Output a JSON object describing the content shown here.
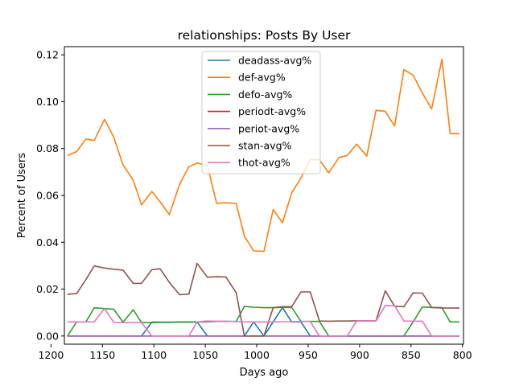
{
  "chart_data": {
    "type": "line",
    "title": "relationships: Posts By User",
    "xlabel": "Days ago",
    "ylabel": "Percent of Users",
    "xlim": [
      1187,
      799
    ],
    "x_inverted": true,
    "ylim": [
      -0.0035,
      0.1235
    ],
    "xticks": [
      1200,
      1150,
      1100,
      1050,
      1000,
      950,
      900,
      850,
      800
    ],
    "yticks": [
      0.0,
      0.02,
      0.04,
      0.06,
      0.08,
      0.1,
      0.12
    ],
    "ytick_labels": [
      "0.00",
      "0.02",
      "0.04",
      "0.06",
      "0.08",
      "0.10",
      "0.12"
    ],
    "grid": false,
    "legend_position": "top-center",
    "x": [
      1184,
      1175,
      1166,
      1158,
      1148,
      1139,
      1130,
      1120,
      1112,
      1102,
      1094,
      1085,
      1075,
      1066,
      1058,
      1048,
      1039,
      1030,
      1020,
      1012,
      1003,
      993,
      984,
      975,
      966,
      957,
      948,
      939,
      930,
      920,
      912,
      903,
      893,
      884,
      875,
      866,
      857,
      848,
      839,
      830,
      820,
      812,
      803,
      793,
      784
    ],
    "series": [
      {
        "name": "deadass-avg%",
        "color": "#1f77b4",
        "values": [
          0.0,
          0.0,
          0.0,
          0.0,
          0.0,
          0.0,
          0.0,
          0.0,
          0.0,
          0.0059,
          0.0059,
          0.0059,
          0.0059,
          0.0059,
          0.006,
          0.0,
          0.0,
          0.0,
          0.0,
          0.0,
          0.006,
          0.0,
          0.006,
          0.0121,
          0.006,
          0.006,
          0.0,
          0.0,
          0.0,
          0.0,
          0.0,
          0.0,
          0.0,
          0.0,
          0.0,
          0.0,
          0.0,
          0.0,
          0.0,
          0.0,
          0.0,
          0.0,
          0.0,
          0.0,
          0.0
        ]
      },
      {
        "name": "def-avg%",
        "color": "#ff7f0e",
        "values": [
          0.077,
          0.0787,
          0.0841,
          0.0834,
          0.0925,
          0.0848,
          0.073,
          0.0665,
          0.056,
          0.0617,
          0.0573,
          0.0518,
          0.0647,
          0.0723,
          0.0738,
          0.0728,
          0.0566,
          0.0569,
          0.0566,
          0.0426,
          0.0363,
          0.0361,
          0.054,
          0.0483,
          0.0611,
          0.0674,
          0.0752,
          0.0752,
          0.0696,
          0.0762,
          0.077,
          0.0819,
          0.0768,
          0.0963,
          0.0959,
          0.0896,
          0.1137,
          0.1113,
          0.1037,
          0.0969,
          0.1181,
          0.0864,
          0.0864,
          0.0864,
          0.0864
        ]
      },
      {
        "name": "defo-avg%",
        "color": "#2ca02c",
        "values": [
          0.0,
          0.006,
          0.006,
          0.012,
          0.0117,
          0.0114,
          0.0059,
          0.0112,
          0.0057,
          0.0057,
          0.0058,
          0.0058,
          0.006,
          0.006,
          0.006,
          0.006,
          0.0062,
          0.0062,
          0.0062,
          0.0126,
          0.0123,
          0.0121,
          0.0121,
          0.0122,
          0.0122,
          0.0062,
          0.0062,
          0.0062,
          0.0,
          0.0,
          0.0,
          0.0,
          0.0,
          0.0,
          0.0,
          0.0,
          0.0,
          0.006,
          0.0124,
          0.0122,
          0.0121,
          0.006,
          0.006,
          0.006,
          0.006
        ]
      },
      {
        "name": "periodt-avg%",
        "color": "#d62728",
        "values": [
          0.0,
          0.0,
          0.0,
          0.0,
          0.0,
          0.0,
          0.0,
          0.0,
          0.0,
          0.0,
          0.0,
          0.0,
          0.0,
          0.0,
          0.0,
          0.0,
          0.0,
          0.0,
          0.0,
          0.0,
          0.0,
          0.0,
          0.0,
          0.0,
          0.0,
          0.0,
          0.0,
          0.0,
          0.0,
          0.0,
          0.0,
          0.0,
          0.0,
          0.0,
          0.0,
          0.0,
          0.0,
          0.0,
          0.0,
          0.0,
          0.0,
          0.0,
          0.0,
          0.0,
          0.0
        ]
      },
      {
        "name": "periot-avg%",
        "color": "#9467bd",
        "values": [
          0.0,
          0.0,
          0.0,
          0.0,
          0.0,
          0.0,
          0.0,
          0.0,
          0.0,
          0.0,
          0.0,
          0.0,
          0.0,
          0.0,
          0.0,
          0.0,
          0.0,
          0.0,
          0.0,
          0.0,
          0.0,
          0.0,
          0.0,
          0.0,
          0.0,
          0.0,
          0.0,
          0.0,
          0.0,
          0.0,
          0.0,
          0.0,
          0.0,
          0.0,
          0.0,
          0.0,
          0.0,
          0.0,
          0.0,
          0.0,
          0.0,
          0.0,
          0.0,
          0.0,
          0.0
        ]
      },
      {
        "name": "stan-avg%",
        "color": "#8c564b",
        "values": [
          0.0178,
          0.0181,
          0.0241,
          0.0299,
          0.029,
          0.0285,
          0.0281,
          0.0224,
          0.0225,
          0.0283,
          0.0287,
          0.0229,
          0.0176,
          0.0179,
          0.031,
          0.0251,
          0.0253,
          0.0252,
          0.0185,
          0.0,
          0.0,
          0.0,
          0.0121,
          0.0125,
          0.0125,
          0.0188,
          0.0188,
          0.0064,
          0.0063,
          0.0064,
          0.0064,
          0.0065,
          0.0065,
          0.0065,
          0.0193,
          0.0127,
          0.0125,
          0.0184,
          0.0183,
          0.0122,
          0.0119,
          0.0119,
          0.0119,
          0.0119,
          0.0119
        ]
      },
      {
        "name": "thot-avg%",
        "color": "#e377c2",
        "values": [
          0.006,
          0.006,
          0.006,
          0.006,
          0.0117,
          0.0058,
          0.0057,
          0.0057,
          0.0057,
          0.0,
          0.0,
          0.0,
          0.0,
          0.0,
          0.006,
          0.0064,
          0.0063,
          0.0063,
          0.0061,
          0.0061,
          0.006,
          0.006,
          0.006,
          0.0061,
          0.0061,
          0.0062,
          0.0062,
          0.0,
          0.0,
          0.0,
          0.0,
          0.0064,
          0.0064,
          0.0064,
          0.013,
          0.0129,
          0.0064,
          0.0063,
          0.0063,
          0.0,
          0.0,
          0.0,
          0.0,
          0.0,
          0.0
        ]
      }
    ]
  }
}
